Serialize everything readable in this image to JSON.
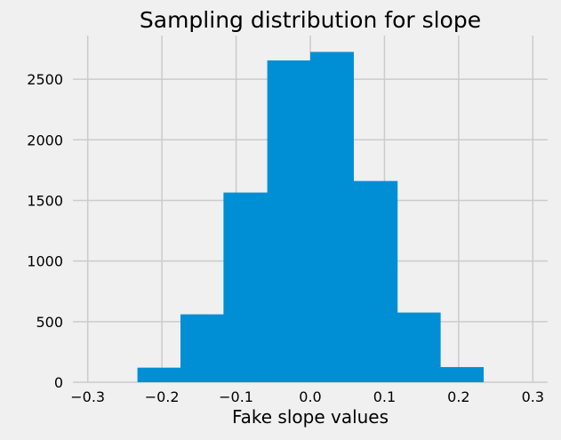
{
  "chart_data": {
    "type": "bar",
    "title": "Sampling distribution for slope",
    "xlabel": "Fake slope values",
    "ylabel": "",
    "bins": [
      {
        "x0": -0.233,
        "x1": -0.175,
        "count": 120
      },
      {
        "x0": -0.175,
        "x1": -0.117,
        "count": 560
      },
      {
        "x0": -0.117,
        "x1": -0.058,
        "count": 1565
      },
      {
        "x0": -0.058,
        "x1": 0.0,
        "count": 2655
      },
      {
        "x0": 0.0,
        "x1": 0.058,
        "count": 2725
      },
      {
        "x0": 0.058,
        "x1": 0.117,
        "count": 1660
      },
      {
        "x0": 0.117,
        "x1": 0.175,
        "count": 575
      },
      {
        "x0": 0.175,
        "x1": 0.233,
        "count": 125
      }
    ],
    "xlim": [
      -0.32,
      0.32
    ],
    "ylim": [
      0,
      2860
    ],
    "xticks": [
      -0.3,
      -0.2,
      -0.1,
      0.0,
      0.1,
      0.2,
      0.3
    ],
    "xtick_labels": [
      "−0.3",
      "−0.2",
      "−0.1",
      "0.0",
      "0.1",
      "0.2",
      "0.3"
    ],
    "yticks": [
      0,
      500,
      1000,
      1500,
      2000,
      2500
    ],
    "ytick_labels": [
      "0",
      "500",
      "1000",
      "1500",
      "2000",
      "2500"
    ],
    "grid": true,
    "colors": {
      "bar": "#008fd5",
      "grid": "#cbcbcb",
      "background": "#f0f0f0"
    }
  }
}
